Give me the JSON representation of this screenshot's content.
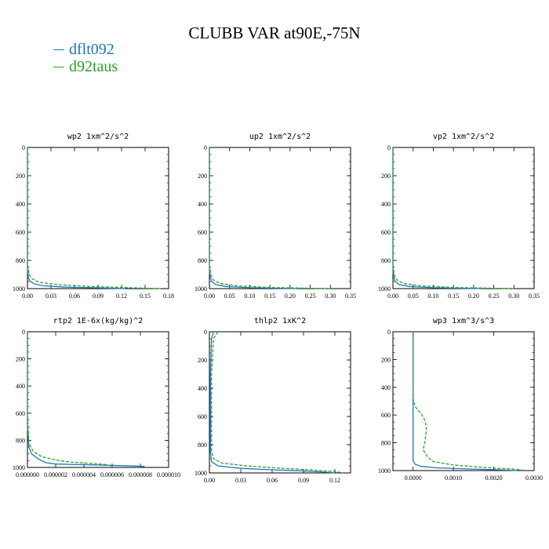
{
  "figure": {
    "title": "CLUBB VAR at90E,-75N",
    "legend": [
      {
        "label": "dflt092",
        "color": "#1f77b4"
      },
      {
        "label": "d92taus",
        "color": "#2ca02c"
      }
    ]
  },
  "chart_data": [
    {
      "type": "line",
      "title": "wp2   1xm^2/s^2",
      "xlim": [
        0,
        0.18
      ],
      "xticks": [
        "0.00",
        "0.03",
        "0.06",
        "0.09",
        "0.12",
        "0.15",
        "0.18"
      ],
      "ylim": [
        0,
        1000
      ],
      "yticks": [
        "0",
        "200",
        "400",
        "600",
        "800",
        "1000"
      ],
      "y_inverted": true,
      "series": [
        {
          "name": "dflt092",
          "color": "#1f77b4",
          "dash": "solid",
          "points": [
            [
              0,
              0
            ],
            [
              0,
              860
            ],
            [
              0.001,
              920
            ],
            [
              0.003,
              945
            ],
            [
              0.008,
              965
            ],
            [
              0.02,
              980
            ],
            [
              0.05,
              990
            ],
            [
              0.1,
              996
            ],
            [
              0.125,
              1000
            ]
          ]
        },
        {
          "name": "d92taus",
          "color": "#2ca02c",
          "dash": "dashed",
          "points": [
            [
              0,
              0
            ],
            [
              0,
              820
            ],
            [
              0.002,
              900
            ],
            [
              0.006,
              930
            ],
            [
              0.015,
              955
            ],
            [
              0.04,
              972
            ],
            [
              0.08,
              985
            ],
            [
              0.13,
              994
            ],
            [
              0.17,
              1000
            ]
          ]
        }
      ]
    },
    {
      "type": "line",
      "title": "up2   1xm^2/s^2",
      "xlim": [
        0,
        0.35
      ],
      "xticks": [
        "0.00",
        "0.05",
        "0.10",
        "0.15",
        "0.20",
        "0.25",
        "0.30",
        "0.35"
      ],
      "ylim": [
        0,
        1000
      ],
      "yticks": [
        "0",
        "200",
        "400",
        "600",
        "800",
        "1000"
      ],
      "y_inverted": true,
      "series": [
        {
          "name": "dflt092",
          "color": "#1f77b4",
          "dash": "solid",
          "points": [
            [
              0,
              0
            ],
            [
              0,
              870
            ],
            [
              0.002,
              920
            ],
            [
              0.006,
              950
            ],
            [
              0.015,
              970
            ],
            [
              0.04,
              985
            ],
            [
              0.1,
              994
            ],
            [
              0.22,
              1000
            ]
          ]
        },
        {
          "name": "d92taus",
          "color": "#2ca02c",
          "dash": "dashed",
          "points": [
            [
              0,
              0
            ],
            [
              0,
              830
            ],
            [
              0.004,
              910
            ],
            [
              0.012,
              945
            ],
            [
              0.03,
              965
            ],
            [
              0.07,
              980
            ],
            [
              0.15,
              992
            ],
            [
              0.3,
              1000
            ]
          ]
        }
      ]
    },
    {
      "type": "line",
      "title": "vp2   1xm^2/s^2",
      "xlim": [
        0,
        0.35
      ],
      "xticks": [
        "0.00",
        "0.05",
        "0.10",
        "0.15",
        "0.20",
        "0.25",
        "0.30",
        "0.35"
      ],
      "ylim": [
        0,
        1000
      ],
      "yticks": [
        "0",
        "200",
        "400",
        "600",
        "800",
        "1000"
      ],
      "y_inverted": true,
      "series": [
        {
          "name": "dflt092",
          "color": "#1f77b4",
          "dash": "solid",
          "points": [
            [
              0,
              0
            ],
            [
              0,
              870
            ],
            [
              0.002,
              920
            ],
            [
              0.006,
              950
            ],
            [
              0.015,
              970
            ],
            [
              0.04,
              985
            ],
            [
              0.1,
              994
            ],
            [
              0.22,
              1000
            ]
          ]
        },
        {
          "name": "d92taus",
          "color": "#2ca02c",
          "dash": "dashed",
          "points": [
            [
              0,
              0
            ],
            [
              0,
              830
            ],
            [
              0.004,
              910
            ],
            [
              0.012,
              945
            ],
            [
              0.03,
              965
            ],
            [
              0.07,
              980
            ],
            [
              0.15,
              992
            ],
            [
              0.3,
              1000
            ]
          ]
        }
      ]
    },
    {
      "type": "line",
      "title": "rtp2   1E-6x(kg/kg)^2",
      "xlim": [
        0,
        1e-05
      ],
      "xticks": [
        "0.000000",
        "0.000002",
        "0.000004",
        "0.000006",
        "0.000008",
        "0.000010"
      ],
      "ylim": [
        0,
        1000
      ],
      "yticks": [
        "0",
        "200",
        "400",
        "600",
        "800",
        "1000"
      ],
      "y_inverted": true,
      "series": [
        {
          "name": "dflt092",
          "color": "#1f77b4",
          "dash": "solid",
          "points": [
            [
              0,
              0
            ],
            [
              0,
              700
            ],
            [
              1e-07,
              850
            ],
            [
              3e-07,
              900
            ],
            [
              8e-07,
              940
            ],
            [
              1.3e-06,
              965
            ],
            [
              2e-06,
              975
            ],
            [
              5e-06,
              982
            ],
            [
              7.8e-06,
              990
            ],
            [
              8.3e-06,
              993
            ]
          ]
        },
        {
          "name": "d92taus",
          "color": "#2ca02c",
          "dash": "dashed",
          "points": [
            [
              0,
              0
            ],
            [
              0,
              600
            ],
            [
              1e-07,
              820
            ],
            [
              4e-07,
              880
            ],
            [
              1e-06,
              920
            ],
            [
              2e-06,
              945
            ],
            [
              3e-06,
              960
            ],
            [
              4.5e-06,
              970
            ],
            [
              5.5e-06,
              978
            ],
            [
              6e-06,
              990
            ]
          ]
        }
      ]
    },
    {
      "type": "line",
      "title": "thlp2   1xK^2",
      "xlim": [
        0,
        0.135
      ],
      "xticks": [
        "0.00",
        "0.03",
        "0.06",
        "0.09",
        "0.12"
      ],
      "ylim": [
        0,
        1000
      ],
      "yticks": [
        "0",
        "200",
        "400",
        "600",
        "800",
        "1000"
      ],
      "y_inverted": true,
      "series": [
        {
          "name": "dflt092",
          "color": "#1f77b4",
          "dash": "solid",
          "points": [
            [
              0.004,
              0
            ],
            [
              0.002,
              50
            ],
            [
              0.001,
              300
            ],
            [
              0.001,
              850
            ],
            [
              0.002,
              920
            ],
            [
              0.008,
              950
            ],
            [
              0.03,
              968
            ],
            [
              0.06,
              978
            ],
            [
              0.09,
              986
            ],
            [
              0.11,
              994
            ],
            [
              0.12,
              1000
            ]
          ]
        },
        {
          "name": "d92taus",
          "color": "#2ca02c",
          "dash": "dashed",
          "points": [
            [
              0.008,
              0
            ],
            [
              0.004,
              50
            ],
            [
              0.002,
              300
            ],
            [
              0.002,
              840
            ],
            [
              0.004,
              900
            ],
            [
              0.012,
              930
            ],
            [
              0.035,
              950
            ],
            [
              0.065,
              965
            ],
            [
              0.095,
              978
            ],
            [
              0.12,
              990
            ],
            [
              0.128,
              1000
            ]
          ]
        }
      ]
    },
    {
      "type": "line",
      "title": "wp3   1xm^3/s^3",
      "xlim": [
        -0.0005,
        0.003
      ],
      "xticks": [
        "0.0000",
        "0.0010",
        "0.0020",
        "0.0030"
      ],
      "xtick_values": [
        0,
        0.001,
        0.002,
        0.003
      ],
      "ylim": [
        0,
        1000
      ],
      "yticks": [
        "0",
        "200",
        "400",
        "600",
        "800",
        "1000"
      ],
      "y_inverted": true,
      "series": [
        {
          "name": "dflt092",
          "color": "#1f77b4",
          "dash": "solid",
          "points": [
            [
              0,
              0
            ],
            [
              0,
              930
            ],
            [
              5e-05,
              955
            ],
            [
              0.0002,
              970
            ],
            [
              0.0006,
              980
            ],
            [
              0.0013,
              988
            ],
            [
              0.002,
              993
            ],
            [
              0.0026,
              1000
            ]
          ]
        },
        {
          "name": "d92taus",
          "color": "#2ca02c",
          "dash": "dashed",
          "points": [
            [
              0,
              0
            ],
            [
              0,
              480
            ],
            [
              5e-05,
              540
            ],
            [
              0.0002,
              590
            ],
            [
              0.0003,
              640
            ],
            [
              0.00033,
              700
            ],
            [
              0.0003,
              780
            ],
            [
              0.00025,
              850
            ],
            [
              0.00035,
              900
            ],
            [
              0.0005,
              935
            ],
            [
              0.001,
              960
            ],
            [
              0.0018,
              978
            ],
            [
              0.0025,
              990
            ],
            [
              0.0028,
              1000
            ]
          ]
        }
      ]
    }
  ]
}
